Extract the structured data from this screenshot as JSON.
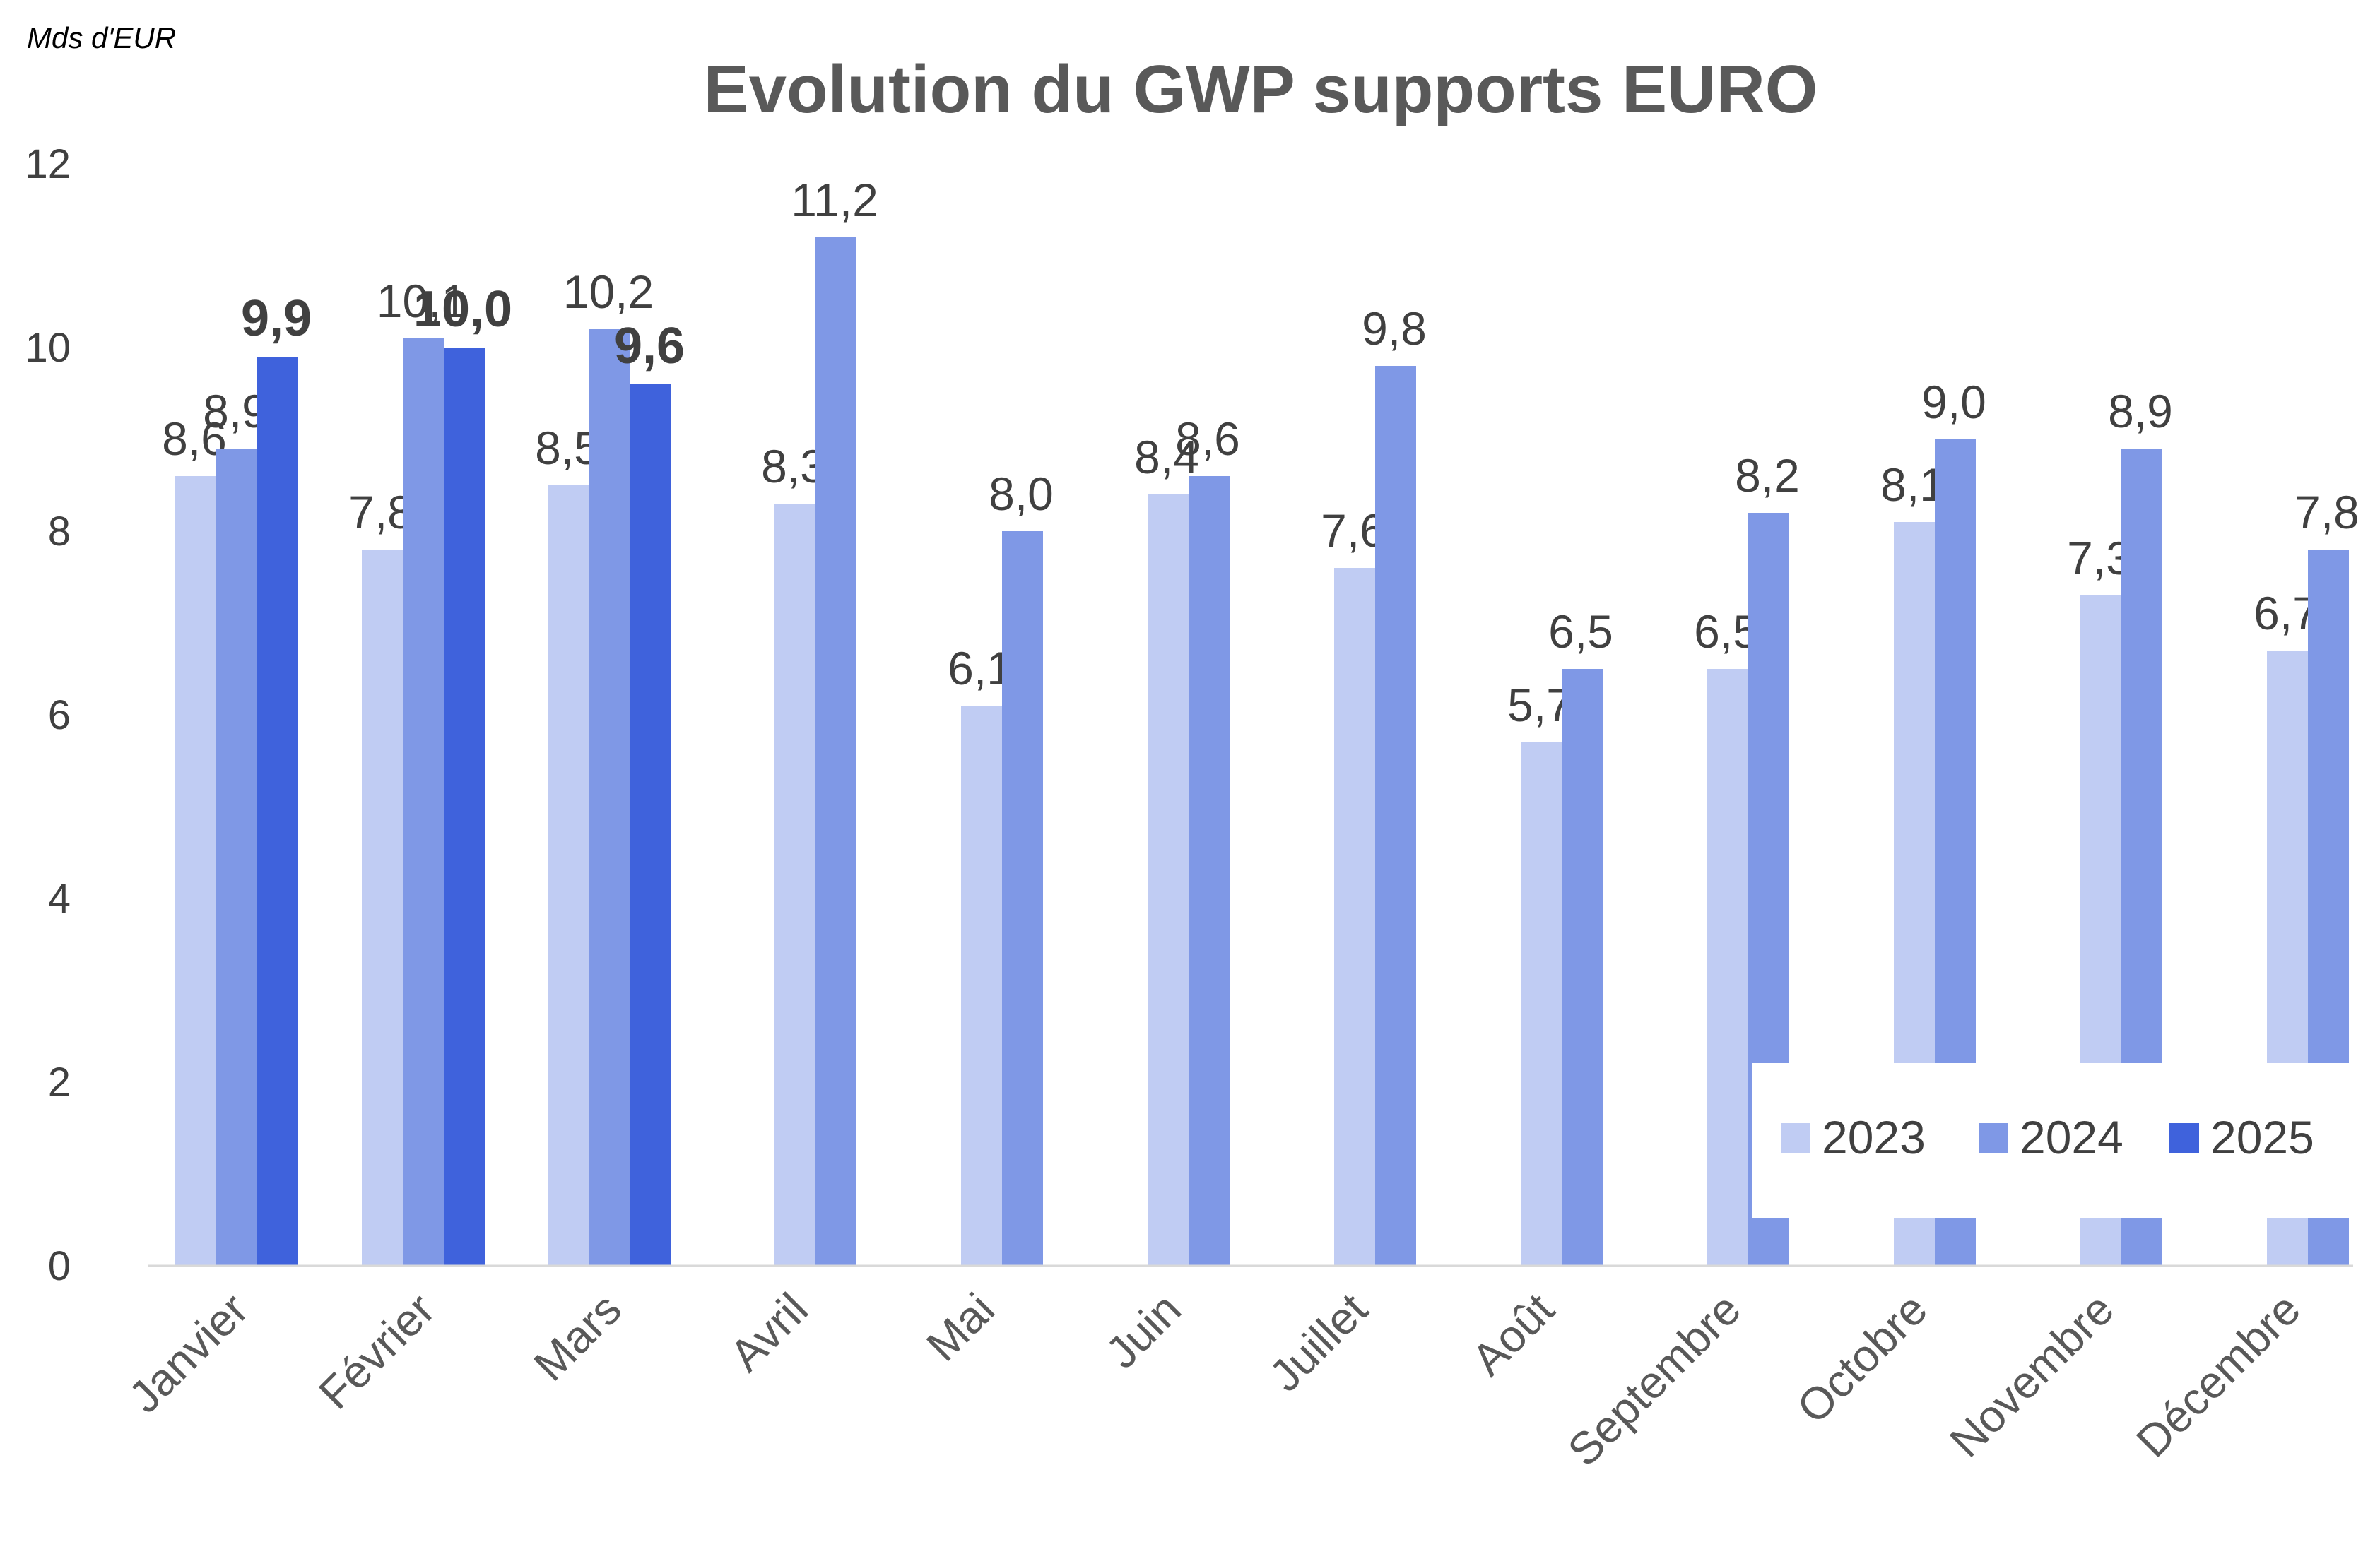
{
  "unit_label": "Mds d'EUR",
  "chart_data": {
    "type": "bar",
    "title": "Evolution du GWP supports EURO",
    "xlabel": "",
    "ylabel": "",
    "ylim": [
      0,
      12
    ],
    "yticks": [
      0,
      2,
      4,
      6,
      8,
      10,
      12
    ],
    "grid": false,
    "legend_position": "bottom-right",
    "categories": [
      "Janvier",
      "Février",
      "Mars",
      "Avril",
      "Mai",
      "Juin",
      "Juillet",
      "Août",
      "Septembre",
      "Octobre",
      "Novembre",
      "Décembre"
    ],
    "series": [
      {
        "name": "2023",
        "color": "#C0CCF3",
        "values": [
          8.6,
          7.8,
          8.5,
          8.3,
          6.1,
          8.4,
          7.6,
          5.7,
          6.5,
          8.1,
          7.3,
          6.7
        ],
        "labels": [
          "8,6",
          "7,8",
          "8,5",
          "8,3",
          "6,1",
          "8,4",
          "7,6",
          "5,7",
          "6,5",
          "8,1",
          "7,3",
          "6,7"
        ],
        "bold": false
      },
      {
        "name": "2024",
        "color": "#7F98E6",
        "values": [
          8.9,
          10.1,
          10.2,
          11.2,
          8.0,
          8.6,
          9.8,
          6.5,
          8.2,
          9.0,
          8.9,
          7.8
        ],
        "labels": [
          "8,9",
          "10,1",
          "10,2",
          "11,2",
          "8,0",
          "8,6",
          "9,8",
          "6,5",
          "8,2",
          "9,0",
          "8,9",
          "7,8"
        ],
        "bold": false
      },
      {
        "name": "2025",
        "color": "#3F62DC",
        "values": [
          9.9,
          10.0,
          9.6,
          null,
          null,
          null,
          null,
          null,
          null,
          null,
          null,
          null
        ],
        "labels": [
          "9,9",
          "10,0",
          "9,6",
          null,
          null,
          null,
          null,
          null,
          null,
          null,
          null,
          null
        ],
        "bold": true
      }
    ]
  }
}
